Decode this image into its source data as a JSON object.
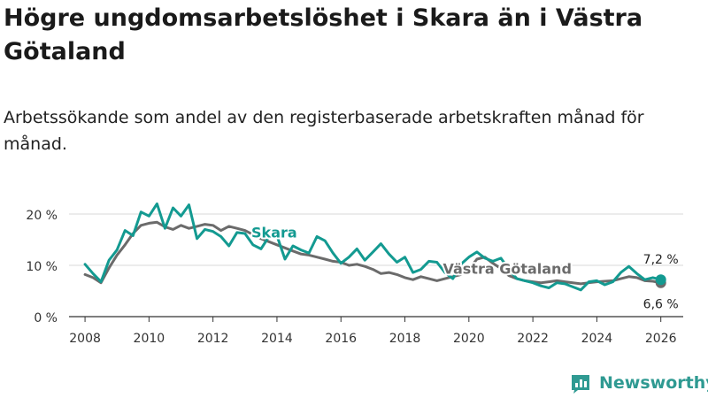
{
  "header": {
    "title": "Högre ungdomsarbetslöshet i Skara än i Västra Götaland",
    "subtitle": "Arbetssökande som andel av den registerbaserade arbetskraften månad för månad."
  },
  "brand": {
    "name": "Newsworthy",
    "icon": "newsworthy-logo-icon",
    "color": "#2f9a92"
  },
  "chart_data": {
    "type": "line",
    "title": "Högre ungdomsarbetslöshet i Skara än i Västra Götaland",
    "xlabel": "",
    "ylabel": "",
    "xlim": [
      2007.5,
      2026.7
    ],
    "ylim": [
      0,
      22
    ],
    "grid": true,
    "y_ticks": [
      0,
      10,
      20
    ],
    "y_tick_labels": [
      "0 %",
      "10 %",
      "20 %"
    ],
    "x_ticks": [
      2008,
      2010,
      2012,
      2014,
      2016,
      2018,
      2020,
      2022,
      2024,
      2026
    ],
    "x_tick_labels": [
      "2008",
      "2010",
      "2012",
      "2014",
      "2016",
      "2018",
      "2020",
      "2022",
      "2024",
      "2026"
    ],
    "series": [
      {
        "name": "Västra Götaland",
        "color": "#6b6b6b",
        "end_label": "6,6 %",
        "x": [
          2008.0,
          2008.25,
          2008.5,
          2008.75,
          2009.0,
          2009.25,
          2009.5,
          2009.75,
          2010.0,
          2010.25,
          2010.5,
          2010.75,
          2011.0,
          2011.25,
          2011.5,
          2011.75,
          2012.0,
          2012.25,
          2012.5,
          2012.75,
          2013.0,
          2013.25,
          2013.5,
          2013.75,
          2014.0,
          2014.25,
          2014.5,
          2014.75,
          2015.0,
          2015.25,
          2015.5,
          2015.75,
          2016.0,
          2016.25,
          2016.5,
          2016.75,
          2017.0,
          2017.25,
          2017.5,
          2017.75,
          2018.0,
          2018.25,
          2018.5,
          2018.75,
          2019.0,
          2019.25,
          2019.5,
          2019.75,
          2020.0,
          2020.25,
          2020.5,
          2020.75,
          2021.0,
          2021.25,
          2021.5,
          2021.75,
          2022.0,
          2022.25,
          2022.5,
          2022.75,
          2023.0,
          2023.25,
          2023.5,
          2023.75,
          2024.0,
          2024.25,
          2024.5,
          2024.75,
          2025.0,
          2025.25,
          2025.5,
          2025.75,
          2026.0
        ],
        "values": [
          8.2,
          7.6,
          6.6,
          9.5,
          12.0,
          14.0,
          16.2,
          17.8,
          18.2,
          18.4,
          17.5,
          17.0,
          17.8,
          17.2,
          17.6,
          18.0,
          17.8,
          16.8,
          17.6,
          17.2,
          16.8,
          16.0,
          15.2,
          14.6,
          14.0,
          13.4,
          12.8,
          12.2,
          12.0,
          11.6,
          11.2,
          10.8,
          10.6,
          10.0,
          10.2,
          9.8,
          9.2,
          8.4,
          8.6,
          8.2,
          7.6,
          7.2,
          7.8,
          7.4,
          7.0,
          7.4,
          7.8,
          8.2,
          9.2,
          11.2,
          11.6,
          10.4,
          9.4,
          8.0,
          7.4,
          7.0,
          6.8,
          6.6,
          6.8,
          7.0,
          6.8,
          6.6,
          6.4,
          6.6,
          6.8,
          6.9,
          7.0,
          7.4,
          7.8,
          7.6,
          7.0,
          6.9,
          6.6
        ]
      },
      {
        "name": "Skara",
        "color": "#139a91",
        "end_label": "7,2 %",
        "x": [
          2008.0,
          2008.25,
          2008.5,
          2008.75,
          2009.0,
          2009.25,
          2009.5,
          2009.75,
          2010.0,
          2010.25,
          2010.5,
          2010.75,
          2011.0,
          2011.25,
          2011.5,
          2011.75,
          2012.0,
          2012.25,
          2012.5,
          2012.75,
          2013.0,
          2013.25,
          2013.5,
          2013.75,
          2014.0,
          2014.25,
          2014.5,
          2014.75,
          2015.0,
          2015.25,
          2015.5,
          2015.75,
          2016.0,
          2016.25,
          2016.5,
          2016.75,
          2017.0,
          2017.25,
          2017.5,
          2017.75,
          2018.0,
          2018.25,
          2018.5,
          2018.75,
          2019.0,
          2019.25,
          2019.5,
          2019.75,
          2020.0,
          2020.25,
          2020.5,
          2020.75,
          2021.0,
          2021.25,
          2021.5,
          2021.75,
          2022.0,
          2022.25,
          2022.5,
          2022.75,
          2023.0,
          2023.25,
          2023.5,
          2023.75,
          2024.0,
          2024.25,
          2024.5,
          2024.75,
          2025.0,
          2025.25,
          2025.5,
          2025.75,
          2026.0
        ],
        "values": [
          10.2,
          8.4,
          6.8,
          11.0,
          13.0,
          16.8,
          15.8,
          20.4,
          19.6,
          22.0,
          17.2,
          21.2,
          19.6,
          21.8,
          15.2,
          17.0,
          16.6,
          15.6,
          13.8,
          16.4,
          16.2,
          14.0,
          13.2,
          15.6,
          15.8,
          11.2,
          13.8,
          13.0,
          12.4,
          15.6,
          14.8,
          12.4,
          10.4,
          11.6,
          13.2,
          11.0,
          12.6,
          14.2,
          12.2,
          10.6,
          11.6,
          8.6,
          9.2,
          10.8,
          10.6,
          8.6,
          7.4,
          10.2,
          11.6,
          12.6,
          11.4,
          10.8,
          11.4,
          9.2,
          7.4,
          7.0,
          6.6,
          6.0,
          5.6,
          6.6,
          6.4,
          5.8,
          5.2,
          6.8,
          7.0,
          6.2,
          6.8,
          8.6,
          9.8,
          8.4,
          7.2,
          7.6,
          7.2
        ]
      }
    ]
  }
}
